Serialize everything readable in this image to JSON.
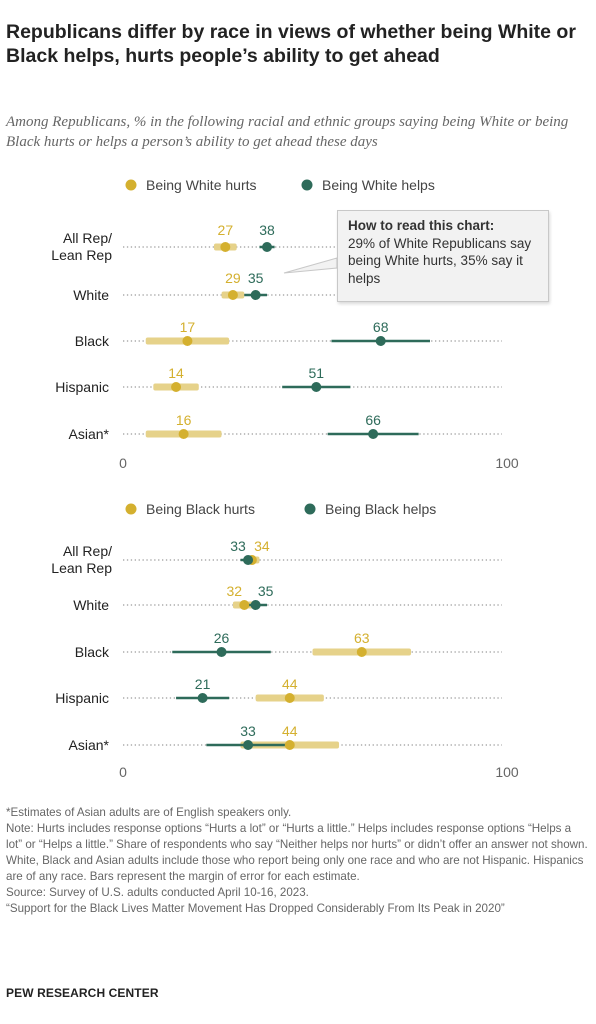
{
  "title": "Republicans differ by race in views of whether being White or Black helps, hurts people’s ability to get ahead",
  "subtitle": "Among Republicans, % in the following racial and ethnic groups saying being White or being Black hurts or helps a person’s ability to get ahead these days",
  "callout": {
    "title": "How to read this chart:",
    "body": "29% of White Republicans say being White hurts, 35% say it helps"
  },
  "colors": {
    "hurts": "#d4b02f",
    "helps": "#2e6b5a",
    "hurts_bar": "#e6d28a",
    "helps_bar": "#2e6b5a"
  },
  "chart_data": [
    {
      "type": "dot-range",
      "xlim": [
        0,
        100
      ],
      "tick_labels": [
        "0",
        "100"
      ],
      "categories": [
        "All Rep/ Lean Rep",
        "White",
        "Black",
        "Hispanic",
        "Asian*"
      ],
      "series": [
        {
          "name": "Being White hurts",
          "key": "hurts",
          "values": [
            27,
            29,
            17,
            14,
            16
          ],
          "moe": [
            3,
            3,
            11,
            6,
            10
          ]
        },
        {
          "name": "Being White helps",
          "key": "helps",
          "values": [
            38,
            35,
            68,
            51,
            66
          ],
          "moe": [
            2,
            3,
            13,
            9,
            12
          ]
        }
      ],
      "legend": "top"
    },
    {
      "type": "dot-range",
      "xlim": [
        0,
        100
      ],
      "tick_labels": [
        "0",
        "100"
      ],
      "categories": [
        "All Rep/ Lean Rep",
        "White",
        "Black",
        "Hispanic",
        "Asian*"
      ],
      "series": [
        {
          "name": "Being Black hurts",
          "key": "hurts",
          "values": [
            34,
            32,
            63,
            44,
            44
          ],
          "moe": [
            2,
            3,
            13,
            9,
            13
          ]
        },
        {
          "name": "Being Black helps",
          "key": "helps",
          "values": [
            33,
            35,
            26,
            21,
            33
          ],
          "moe": [
            2,
            3,
            13,
            7,
            11
          ]
        }
      ],
      "legend": "top"
    }
  ],
  "footnotes": [
    "*Estimates of Asian adults are of English speakers only.",
    "Note: Hurts includes response options “Hurts a lot” or “Hurts a little.” Helps includes response options “Helps a lot” or “Helps a little.” Share of respondents who say “Neither helps nor hurts” or didn’t offer an answer not shown. White, Black and Asian adults include those who report being only one race and who are not Hispanic. Hispanics are of any race. Bars represent the margin of error for each estimate.",
    "Source: Survey of U.S. adults conducted April 10-16, 2023.",
    "“Support for the Black Lives Matter Movement Has Dropped Considerably From Its Peak in 2020”"
  ],
  "brand": "PEW RESEARCH CENTER"
}
